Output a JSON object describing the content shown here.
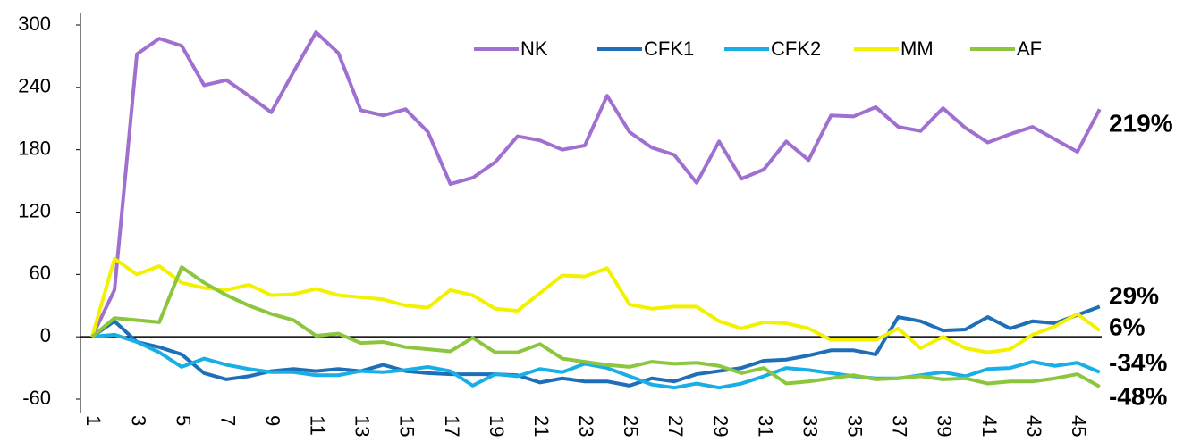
{
  "chart_data": {
    "type": "line",
    "categories": [
      "1",
      null,
      "3",
      null,
      "5",
      null,
      "7",
      null,
      "9",
      null,
      "11",
      null,
      "13",
      null,
      "15",
      null,
      "17",
      null,
      "19",
      null,
      "21",
      null,
      "23",
      null,
      "25",
      null,
      "27",
      null,
      "29",
      null,
      "31",
      null,
      "33",
      null,
      "35",
      null,
      "37",
      null,
      "39",
      null,
      "41",
      null,
      "43",
      null,
      "45",
      null
    ],
    "ylim": [
      -60,
      300
    ],
    "yticks": [
      -60,
      0,
      60,
      120,
      180,
      240,
      300
    ],
    "legend": "top-right",
    "series": [
      {
        "name": "NK",
        "color": "#a070d0",
        "end_label": "219%",
        "values": [
          0,
          45,
          272,
          287,
          280,
          242,
          247,
          232,
          216,
          255,
          293,
          273,
          218,
          213,
          219,
          197,
          147,
          153,
          168,
          193,
          189,
          180,
          184,
          232,
          197,
          182,
          175,
          148,
          188,
          152,
          161,
          188,
          170,
          213,
          212,
          221,
          202,
          198,
          220,
          201,
          187,
          195,
          202,
          190,
          178,
          219
        ]
      },
      {
        "name": "CFK1",
        "color": "#1f6fb8",
        "end_label": "29%",
        "values": [
          0,
          15,
          -5,
          -10,
          -17,
          -35,
          -41,
          -38,
          -33,
          -31,
          -33,
          -31,
          -33,
          -27,
          -33,
          -35,
          -36,
          -36,
          -36,
          -37,
          -44,
          -40,
          -43,
          -43,
          -47,
          -40,
          -43,
          -36,
          -33,
          -30,
          -23,
          -22,
          -18,
          -13,
          -13,
          -17,
          19,
          15,
          6,
          7,
          19,
          8,
          15,
          13,
          21,
          29
        ]
      },
      {
        "name": "CFK2",
        "color": "#19aee6",
        "end_label": "-34%",
        "values": [
          0,
          2,
          -5,
          -15,
          -29,
          -21,
          -27,
          -31,
          -34,
          -34,
          -37,
          -37,
          -33,
          -34,
          -32,
          -29,
          -33,
          -47,
          -36,
          -38,
          -31,
          -34,
          -26,
          -30,
          -38,
          -46,
          -49,
          -45,
          -49,
          -45,
          -38,
          -30,
          -32,
          -35,
          -38,
          -40,
          -40,
          -37,
          -34,
          -38,
          -31,
          -30,
          -24,
          -28,
          -25,
          -34
        ]
      },
      {
        "name": "MM",
        "color": "#f2f200",
        "end_label": "6%",
        "values": [
          0,
          75,
          60,
          68,
          52,
          47,
          45,
          50,
          40,
          41,
          46,
          40,
          38,
          36,
          30,
          28,
          45,
          40,
          27,
          25,
          42,
          59,
          58,
          66,
          31,
          27,
          29,
          29,
          15,
          8,
          14,
          13,
          8,
          -3,
          -3,
          -3,
          8,
          -11,
          0,
          -11,
          -15,
          -12,
          2,
          10,
          22,
          6
        ]
      },
      {
        "name": "AF",
        "color": "#8cc63f",
        "end_label": "-48%",
        "values": [
          0,
          18,
          16,
          14,
          67,
          52,
          40,
          30,
          22,
          16,
          1,
          3,
          -6,
          -5,
          -10,
          -12,
          -14,
          -1,
          -15,
          -15,
          -7,
          -21,
          -24,
          -27,
          -29,
          -24,
          -26,
          -25,
          -28,
          -35,
          -30,
          -45,
          -43,
          -40,
          -37,
          -41,
          -40,
          -38,
          -41,
          -40,
          -45,
          -43,
          -43,
          -40,
          -36,
          -48
        ]
      }
    ]
  }
}
